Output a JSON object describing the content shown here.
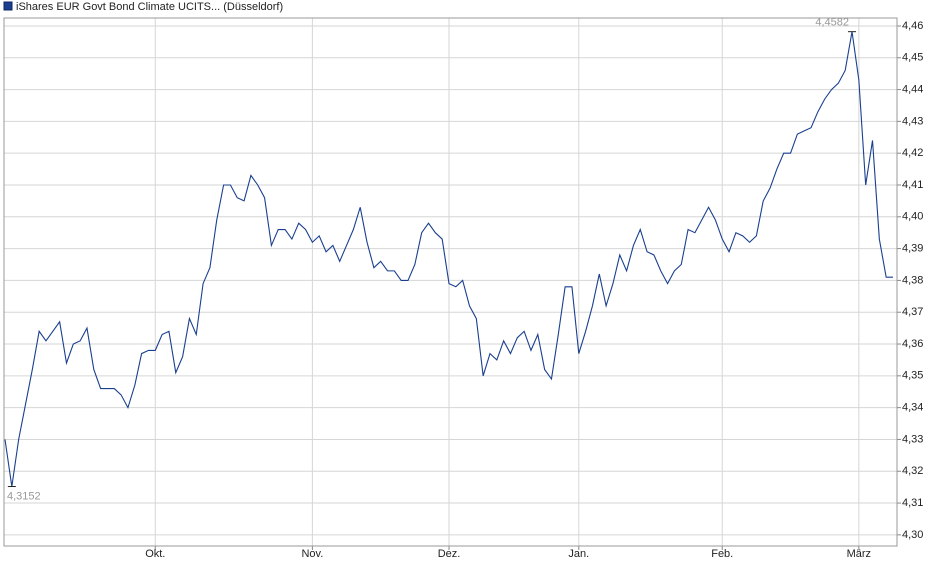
{
  "chart_data": {
    "type": "line",
    "series": [
      {
        "name": "iShares EUR Govt Bond Climate UCITS... (Düsseldorf)",
        "color": "#1a3f8f",
        "values": [
          4.33,
          4.3152,
          4.33,
          4.341,
          4.352,
          4.364,
          4.361,
          4.364,
          4.367,
          4.354,
          4.36,
          4.361,
          4.365,
          4.352,
          4.346,
          4.346,
          4.346,
          4.344,
          4.34,
          4.347,
          4.357,
          4.358,
          4.358,
          4.363,
          4.364,
          4.351,
          4.356,
          4.368,
          4.363,
          4.379,
          4.384,
          4.399,
          4.41,
          4.41,
          4.406,
          4.405,
          4.413,
          4.41,
          4.406,
          4.391,
          4.396,
          4.396,
          4.393,
          4.398,
          4.396,
          4.392,
          4.394,
          4.389,
          4.391,
          4.386,
          4.391,
          4.396,
          4.403,
          4.392,
          4.384,
          4.386,
          4.383,
          4.383,
          4.38,
          4.38,
          4.385,
          4.395,
          4.398,
          4.395,
          4.393,
          4.379,
          4.378,
          4.38,
          4.372,
          4.368,
          4.35,
          4.357,
          4.355,
          4.361,
          4.357,
          4.362,
          4.364,
          4.358,
          4.363,
          4.352,
          4.349,
          4.363,
          4.378,
          4.378,
          4.357,
          4.364,
          4.372,
          4.382,
          4.372,
          4.379,
          4.388,
          4.383,
          4.391,
          4.396,
          4.389,
          4.388,
          4.383,
          4.379,
          4.383,
          4.385,
          4.396,
          4.395,
          4.399,
          4.403,
          4.399,
          4.393,
          4.389,
          4.395,
          4.394,
          4.392,
          4.394,
          4.405,
          4.409,
          4.415,
          4.42,
          4.42,
          4.426,
          4.427,
          4.428,
          4.433,
          4.437,
          4.44,
          4.442,
          4.446,
          4.4582,
          4.443,
          4.41,
          4.424,
          4.393,
          4.381,
          4.381
        ]
      }
    ],
    "categories": [
      null,
      null,
      null,
      null,
      null,
      null,
      null,
      null,
      null,
      null,
      null,
      null,
      null,
      null,
      null,
      null,
      null,
      null,
      null,
      null,
      null,
      null,
      "Okt.",
      null,
      null,
      null,
      null,
      null,
      null,
      null,
      null,
      null,
      null,
      null,
      null,
      null,
      null,
      null,
      null,
      null,
      null,
      null,
      null,
      null,
      null,
      "Nov.",
      null,
      null,
      null,
      null,
      null,
      null,
      null,
      null,
      null,
      null,
      null,
      null,
      null,
      null,
      null,
      null,
      null,
      null,
      null,
      "Dez.",
      null,
      null,
      null,
      null,
      null,
      null,
      null,
      null,
      null,
      null,
      null,
      null,
      null,
      null,
      null,
      null,
      null,
      null,
      "Jan.",
      null,
      null,
      null,
      null,
      null,
      null,
      null,
      null,
      null,
      null,
      null,
      null,
      null,
      null,
      null,
      null,
      null,
      null,
      null,
      null,
      "Feb.",
      null,
      null,
      null,
      null,
      null,
      null,
      null,
      null,
      null,
      null,
      null,
      null,
      null,
      null,
      null,
      null,
      null,
      null,
      null,
      "März",
      null,
      null,
      null,
      null,
      null
    ],
    "annotations": [
      {
        "value": 4.4582,
        "label": "4,4582"
      },
      {
        "value": 4.3152,
        "label": "4,3152"
      }
    ],
    "ylim": [
      4.2965,
      4.4625
    ],
    "yticks": [
      {
        "value": 4.3,
        "label": "4,30"
      },
      {
        "value": 4.31,
        "label": "4,31"
      },
      {
        "value": 4.32,
        "label": "4,32"
      },
      {
        "value": 4.33,
        "label": "4,33"
      },
      {
        "value": 4.34,
        "label": "4,34"
      },
      {
        "value": 4.35,
        "label": "4,35"
      },
      {
        "value": 4.36,
        "label": "4,36"
      },
      {
        "value": 4.37,
        "label": "4,37"
      },
      {
        "value": 4.38,
        "label": "4,38"
      },
      {
        "value": 4.39,
        "label": "4,39"
      },
      {
        "value": 4.4,
        "label": "4,40"
      },
      {
        "value": 4.41,
        "label": "4,41"
      },
      {
        "value": 4.42,
        "label": "4,42"
      },
      {
        "value": 4.43,
        "label": "4,43"
      },
      {
        "value": 4.44,
        "label": "4,44"
      },
      {
        "value": 4.45,
        "label": "4,45"
      },
      {
        "value": 4.46,
        "label": "4,46"
      }
    ],
    "grid": true
  }
}
